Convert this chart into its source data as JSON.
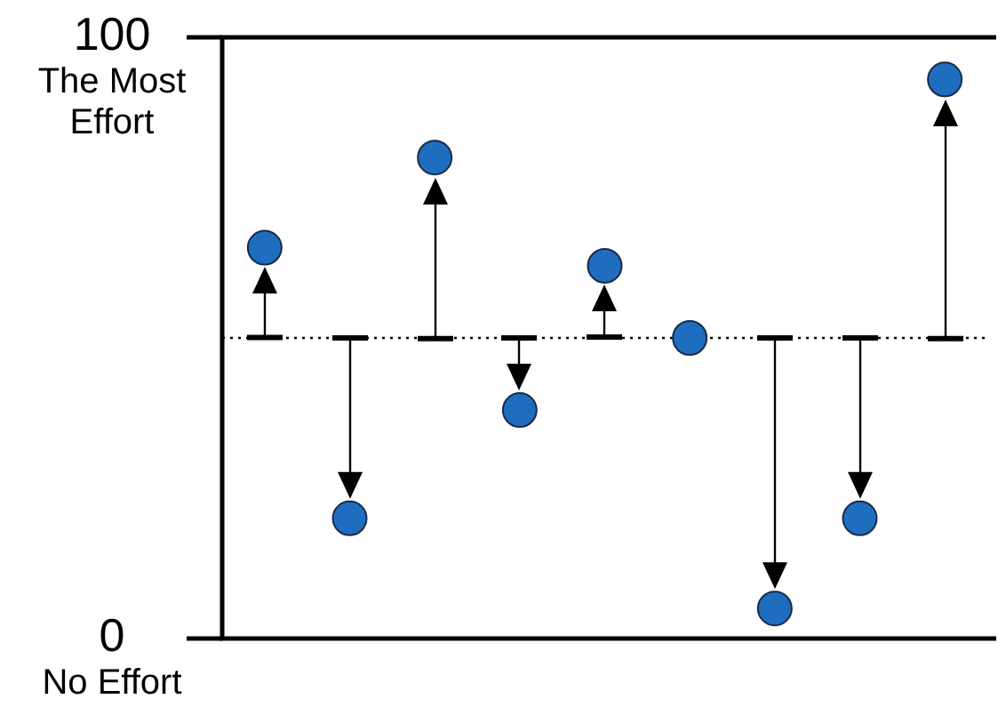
{
  "chart_data": {
    "type": "scatter",
    "categories": [
      null,
      null,
      null,
      null,
      null,
      null,
      null,
      null,
      null
    ],
    "values": [
      65,
      20,
      80,
      38,
      62,
      50,
      5,
      20,
      93
    ],
    "color": "#1f6dbf",
    "marker": "circle",
    "ylim": [
      0,
      100
    ],
    "yticks": [
      100,
      0
    ],
    "annotations": [
      "The Most Effort",
      "No Effort"
    ],
    "ref_lines": [
      {
        "axis": "y",
        "value": 50,
        "line_style": "dotted",
        "color": "#000000"
      }
    ],
    "legend": false
  }
}
